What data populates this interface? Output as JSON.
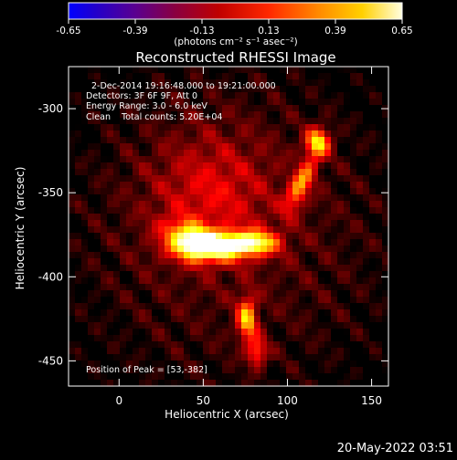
{
  "colorbar": {
    "tick_labels": [
      "-0.65",
      "-0.39",
      "-0.13",
      "0.13",
      "0.39",
      "0.65"
    ],
    "tick_values": [
      -0.65,
      -0.39,
      -0.13,
      0.13,
      0.39,
      0.65
    ],
    "range": [
      -0.65,
      0.65
    ],
    "units_label": "(photons cm⁻² s⁻¹ asec⁻²)"
  },
  "title": "Reconstructed RHESSI Image",
  "annotations": {
    "time_range": "2-Dec-2014 19:16:48.000 to 19:21:00.000",
    "detectors": "Detectors: 3F 6F 9F, Att 0",
    "energy_range": "Energy Range: 3.0 - 6.0 keV",
    "clean_counts": "Clean    Total counts: 5.20E+04",
    "peak": "Position of Peak = [53,-382]"
  },
  "footer_timestamp": "20-May-2022 03:51",
  "chart_data": {
    "type": "heatmap",
    "title": "Reconstructed RHESSI Image",
    "xlabel": "Heliocentric X (arcsec)",
    "ylabel": "Heliocentric Y (arcsec)",
    "xlim": [
      -30,
      160
    ],
    "ylim": [
      -465,
      -275
    ],
    "x_ticks": [
      0,
      50,
      100,
      150
    ],
    "y_ticks": [
      -300,
      -350,
      -400,
      -450
    ],
    "x_tick_labels": [
      "0",
      "50",
      "100",
      "150"
    ],
    "y_tick_labels": [
      "-300",
      "-350",
      "-400",
      "-450"
    ],
    "colormap": "hot",
    "peak_position": [
      53,
      -382
    ],
    "sources": [
      {
        "x": 53,
        "y": -382,
        "sx": 14,
        "sy": 6,
        "amp": 1.0,
        "rot": 0
      },
      {
        "x": 80,
        "y": -380,
        "sx": 10,
        "sy": 5,
        "amp": 0.75,
        "rot": 0
      },
      {
        "x": 40,
        "y": -375,
        "sx": 10,
        "sy": 6,
        "amp": 0.45,
        "rot": -20
      },
      {
        "x": 118,
        "y": -320,
        "sx": 5,
        "sy": 6,
        "amp": 0.7,
        "rot": 0
      },
      {
        "x": 108,
        "y": -345,
        "sx": 4,
        "sy": 12,
        "amp": 0.55,
        "rot": -25
      },
      {
        "x": 76,
        "y": -425,
        "sx": 4,
        "sy": 9,
        "amp": 0.65,
        "rot": 0
      },
      {
        "x": 82,
        "y": -445,
        "sx": 4,
        "sy": 6,
        "amp": 0.45,
        "rot": 0
      },
      {
        "x": 55,
        "y": -350,
        "sx": 25,
        "sy": 25,
        "amp": 0.25,
        "rot": 0
      }
    ],
    "background_level": 0.12,
    "grid": false
  }
}
